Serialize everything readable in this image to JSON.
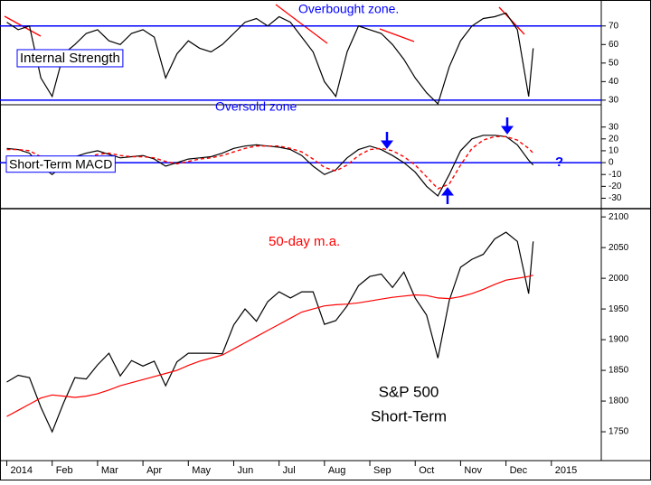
{
  "chart_data": {
    "type": "line",
    "x": [
      0,
      0.25,
      0.5,
      0.75,
      1,
      1.25,
      1.5,
      1.75,
      2,
      2.25,
      2.5,
      2.75,
      3,
      3.25,
      3.5,
      3.75,
      4,
      4.25,
      4.5,
      4.75,
      5,
      5.25,
      5.5,
      5.75,
      6,
      6.25,
      6.5,
      6.75,
      7,
      7.25,
      7.5,
      7.75,
      8,
      8.25,
      8.5,
      8.75,
      9,
      9.25,
      9.5,
      9.75,
      10,
      10.25,
      10.5,
      10.75,
      11,
      11.25,
      11.5,
      11.6
    ],
    "xlim": [
      -0.15,
      13.1
    ],
    "xticks": [
      {
        "value": 0,
        "label": "2014"
      },
      {
        "value": 1,
        "label": "Feb"
      },
      {
        "value": 2,
        "label": "Mar"
      },
      {
        "value": 3,
        "label": "Apr"
      },
      {
        "value": 4,
        "label": "May"
      },
      {
        "value": 5,
        "label": "Jun"
      },
      {
        "value": 6,
        "label": "Jul"
      },
      {
        "value": 7,
        "label": "Aug"
      },
      {
        "value": 8,
        "label": "Sep"
      },
      {
        "value": 9,
        "label": "Oct"
      },
      {
        "value": 10,
        "label": "Nov"
      },
      {
        "value": 11,
        "label": "Dec"
      },
      {
        "value": 12,
        "label": "2015"
      }
    ],
    "panels": [
      {
        "type": "line",
        "title": "Internal Strength",
        "ylim": [
          28,
          84
        ],
        "yticks": [
          30,
          40,
          50,
          60,
          70
        ],
        "hlines": [
          70,
          30
        ],
        "hline_color": "#0000ff",
        "annotations": [
          "Overbought zone.",
          "Oversold zone"
        ],
        "series": [
          {
            "color": "#000000",
            "style": "solid",
            "values": [
              72,
              68,
              70,
              42,
              32,
              55,
              60,
              66,
              68,
              62,
              60,
              66,
              68,
              64,
              42,
              55,
              62,
              58,
              56,
              60,
              66,
              72,
              74,
              70,
              75,
              72,
              64,
              56,
              40,
              32,
              56,
              70,
              68,
              66,
              60,
              52,
              42,
              34,
              28,
              48,
              62,
              70,
              74,
              75,
              77,
              68,
              32,
              58
            ]
          }
        ]
      },
      {
        "type": "line",
        "title": "Short-Term MACD",
        "ylim": [
          -38,
          48
        ],
        "yticks": [
          30,
          20,
          10,
          0,
          -10,
          -20,
          -30
        ],
        "hlines": [
          0
        ],
        "hline_color": "#0000ff",
        "annotations": [
          "?"
        ],
        "series": [
          {
            "color": "#000000",
            "style": "solid",
            "values": [
              12,
              11,
              8,
              -3,
              -10,
              -2,
              5,
              8,
              10,
              7,
              4,
              5,
              6,
              3,
              -3,
              0,
              3,
              4,
              5,
              8,
              12,
              14,
              15,
              14,
              13,
              11,
              6,
              -3,
              -10,
              -6,
              4,
              11,
              14,
              11,
              6,
              0,
              -8,
              -20,
              -28,
              -10,
              10,
              20,
              23,
              23,
              22,
              15,
              2,
              -2
            ]
          },
          {
            "color": "#ff0000",
            "style": "dashed",
            "values": [
              11,
              11,
              10,
              5,
              -2,
              -4,
              0,
              4,
              7,
              8,
              6,
              5,
              5,
              4,
              1,
              -1,
              1,
              3,
              4,
              6,
              9,
              12,
              14,
              14,
              14,
              12,
              9,
              3,
              -4,
              -7,
              -2,
              6,
              11,
              12,
              10,
              5,
              -2,
              -12,
              -22,
              -18,
              -2,
              12,
              19,
              22,
              22,
              19,
              12,
              8
            ]
          }
        ]
      },
      {
        "type": "line",
        "title": "S&P 500",
        "subtitle": "Short-Term",
        "ylim": [
          1703,
          2112
        ],
        "yticks": [
          1750,
          1800,
          1850,
          1900,
          1950,
          2000,
          2050,
          2100
        ],
        "hlines": [],
        "hline_color": "#0000ff",
        "annotations": [],
        "series": [
          {
            "color": "#000000",
            "style": "solid",
            "values": [
              1831,
              1842,
              1838,
              1790,
              1750,
              1797,
              1838,
              1836,
              1859,
              1878,
              1841,
              1866,
              1857,
              1865,
              1825,
              1864,
              1878,
              1878,
              1878,
              1877,
              1924,
              1950,
              1930,
              1962,
              1978,
              1968,
              1978,
              1978,
              1925,
              1931,
              1955,
              1988,
              2003,
              2007,
              1985,
              2010,
              1968,
              1940,
              1870,
              1964,
              2018,
              2031,
              2039,
              2064,
              2075,
              2060,
              1975,
              2060
            ]
          },
          {
            "name": "50-day m.a.",
            "color": "#ff0000",
            "style": "solid",
            "values": [
              1775,
              1785,
              1795,
              1805,
              1810,
              1808,
              1806,
              1808,
              1812,
              1818,
              1825,
              1830,
              1835,
              1840,
              1845,
              1850,
              1858,
              1865,
              1870,
              1875,
              1885,
              1895,
              1905,
              1915,
              1925,
              1935,
              1945,
              1950,
              1955,
              1957,
              1958,
              1960,
              1963,
              1966,
              1969,
              1971,
              1973,
              1972,
              1968,
              1967,
              1970,
              1975,
              1982,
              1990,
              1997,
              2000,
              2003,
              2005
            ]
          }
        ]
      }
    ]
  }
}
